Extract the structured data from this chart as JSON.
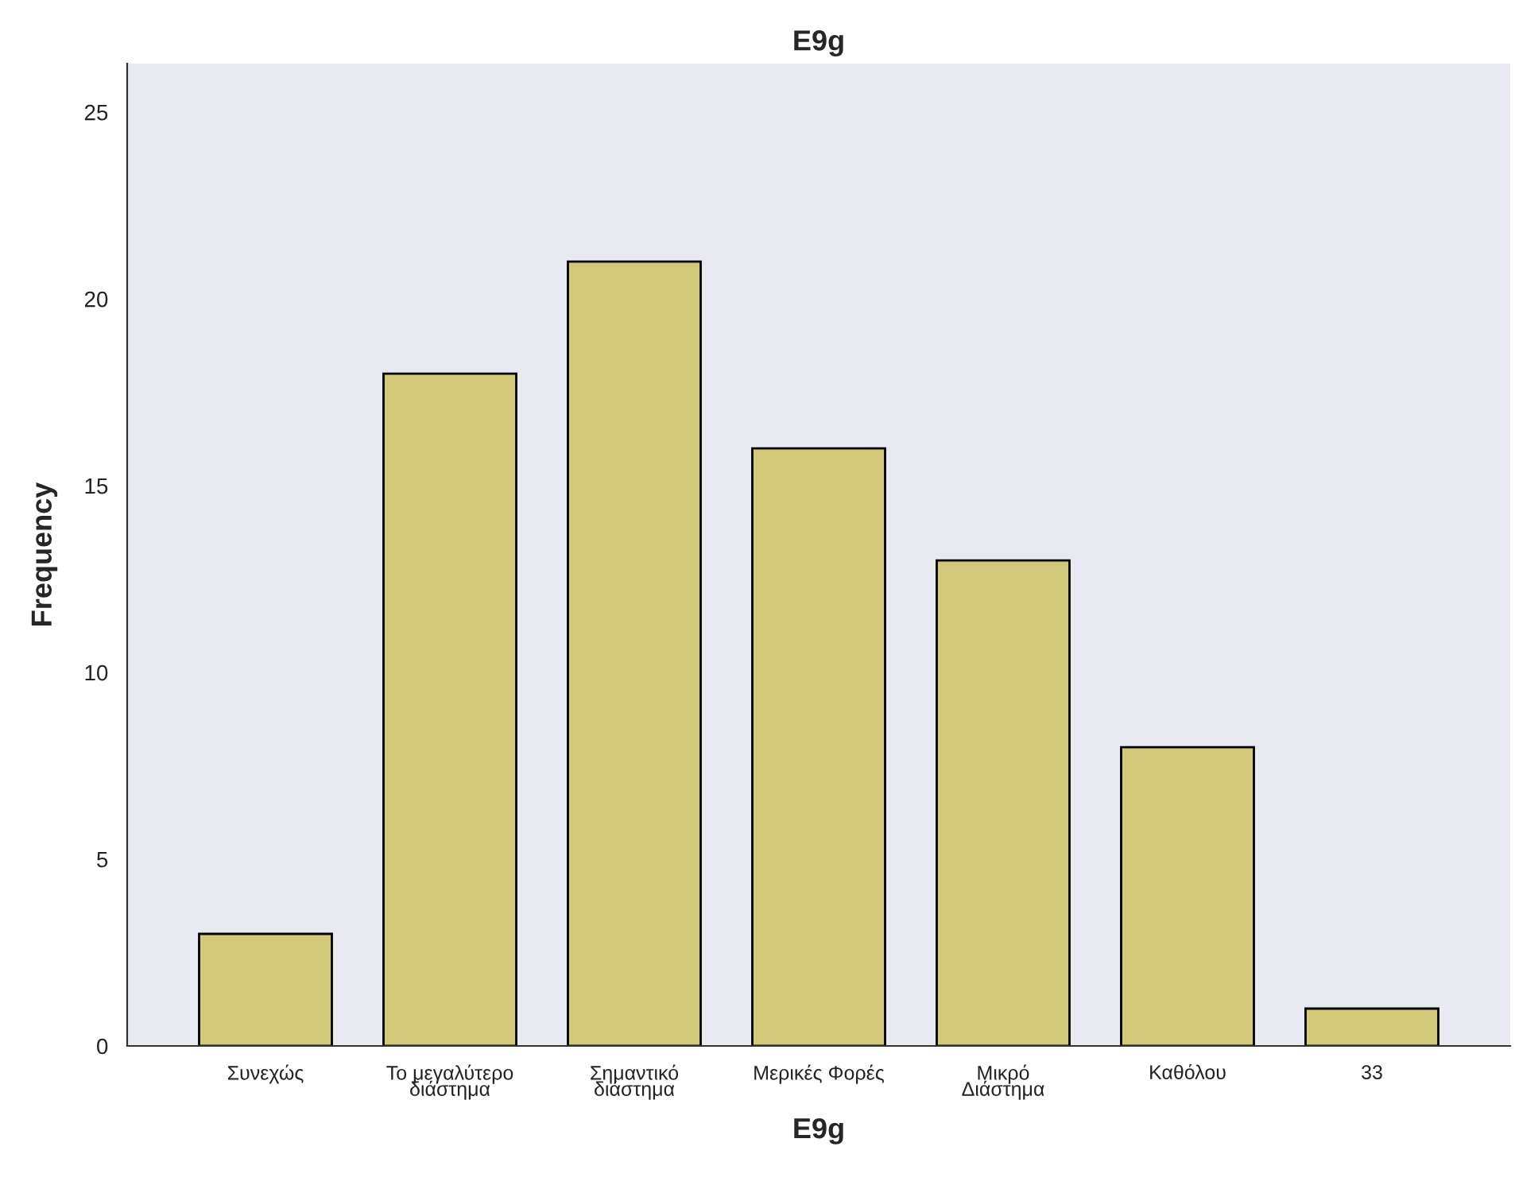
{
  "chart_data": {
    "type": "bar",
    "title": "E9g",
    "xlabel": "E9g",
    "ylabel": "Frequency",
    "categories": [
      "Συνεχώς",
      "Το μεγαλύτερο\nδιάστημα",
      "Σημαντικό\nδιάστημα",
      "Μερικές Φορές",
      "Μικρό\nΔιάστημα",
      "Καθόλου",
      "33"
    ],
    "values": [
      3,
      18,
      21,
      16,
      13,
      8,
      1
    ],
    "color": "#d2c87a",
    "ylim": [
      0,
      26.3
    ],
    "yticks": [
      0,
      5,
      10,
      15,
      20,
      25
    ],
    "grid": false
  }
}
